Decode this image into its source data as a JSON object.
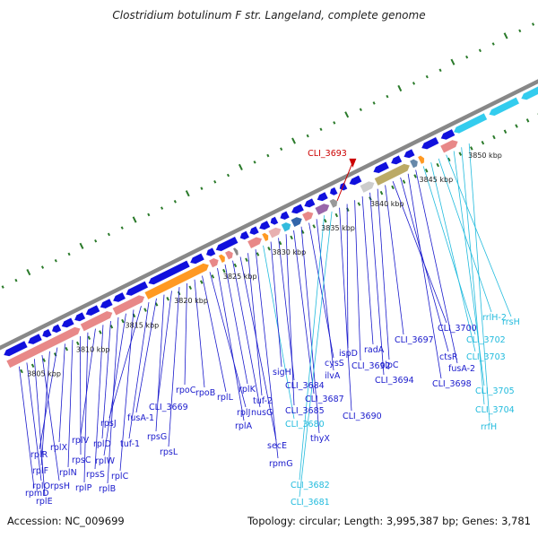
{
  "title": "Clostridium botulinum F str. Langeland, complete genome",
  "footer": {
    "accession": "Accession: NC_009699",
    "info": "Topology: circular; Length: 3,995,387 bp; Genes: 3,781"
  },
  "highlight": {
    "label": "CLI_3693",
    "color": "#cc0000"
  },
  "colors": {
    "backbone": "#888888",
    "gene_blue": "#1010dd",
    "gene_cyan": "#33ccee",
    "label_blue": "#1a1acc",
    "label_cyan": "#22bbdd",
    "tick_green": "#2a7a2a",
    "salmon": "#e88888",
    "orange": "#ff9922",
    "olive": "#bbaa66"
  },
  "scale_labels": [
    {
      "text": "3805 kbp",
      "kbp": 3805
    },
    {
      "text": "3810 kbp",
      "kbp": 3810
    },
    {
      "text": "3815 kbp",
      "kbp": 3815
    },
    {
      "text": "3820 kbp",
      "kbp": 3820
    },
    {
      "text": "3825 kbp",
      "kbp": 3825
    },
    {
      "text": "3830 kbp",
      "kbp": 3830
    },
    {
      "text": "3835 kbp",
      "kbp": 3835
    },
    {
      "text": "3840 kbp",
      "kbp": 3840
    },
    {
      "text": "3845 kbp",
      "kbp": 3845
    },
    {
      "text": "3850 kbp",
      "kbp": 3850
    }
  ],
  "gene_labels": [
    {
      "text": "rpmD",
      "color": "blue"
    },
    {
      "text": "rplO",
      "color": "blue"
    },
    {
      "text": "rplE",
      "color": "blue"
    },
    {
      "text": "rpsH",
      "color": "blue"
    },
    {
      "text": "rplF",
      "color": "blue"
    },
    {
      "text": "rplR",
      "color": "blue"
    },
    {
      "text": "rplX",
      "color": "blue"
    },
    {
      "text": "rplN",
      "color": "blue"
    },
    {
      "text": "rpsC",
      "color": "blue"
    },
    {
      "text": "rplP",
      "color": "blue"
    },
    {
      "text": "rplV",
      "color": "blue"
    },
    {
      "text": "rpsS",
      "color": "blue"
    },
    {
      "text": "rplD",
      "color": "blue"
    },
    {
      "text": "rplB",
      "color": "blue"
    },
    {
      "text": "rplW",
      "color": "blue"
    },
    {
      "text": "rplC",
      "color": "blue"
    },
    {
      "text": "rpsJ",
      "color": "blue"
    },
    {
      "text": "tuf-1",
      "color": "blue"
    },
    {
      "text": "fusA-1",
      "color": "blue"
    },
    {
      "text": "rpsG",
      "color": "blue"
    },
    {
      "text": "CLI_3669",
      "color": "blue"
    },
    {
      "text": "rpsL",
      "color": "blue"
    },
    {
      "text": "rpoC",
      "color": "blue"
    },
    {
      "text": "rpoB",
      "color": "blue"
    },
    {
      "text": "rplL",
      "color": "blue"
    },
    {
      "text": "rplJ",
      "color": "blue"
    },
    {
      "text": "rplA",
      "color": "blue"
    },
    {
      "text": "rplK",
      "color": "blue"
    },
    {
      "text": "nusG",
      "color": "blue"
    },
    {
      "text": "secE",
      "color": "blue"
    },
    {
      "text": "tuf-2",
      "color": "blue"
    },
    {
      "text": "rpmG",
      "color": "blue"
    },
    {
      "text": "CLI_3680",
      "color": "cyan"
    },
    {
      "text": "sigH",
      "color": "blue"
    },
    {
      "text": "CLI_3684",
      "color": "blue"
    },
    {
      "text": "CLI_3685",
      "color": "blue"
    },
    {
      "text": "CLI_3687",
      "color": "blue"
    },
    {
      "text": "thyX",
      "color": "blue"
    },
    {
      "text": "cysS",
      "color": "blue"
    },
    {
      "text": "ilvA",
      "color": "blue"
    },
    {
      "text": "CLI_3682",
      "color": "cyan"
    },
    {
      "text": "CLI_3681",
      "color": "cyan"
    },
    {
      "text": "CLI_3690",
      "color": "blue"
    },
    {
      "text": "ispD",
      "color": "blue"
    },
    {
      "text": "CLI_3692",
      "color": "blue"
    },
    {
      "text": "radA",
      "color": "blue"
    },
    {
      "text": "CLI_3694",
      "color": "blue"
    },
    {
      "text": "clpC",
      "color": "blue"
    },
    {
      "text": "CLI_3697",
      "color": "blue"
    },
    {
      "text": "CLI_3700",
      "color": "blue"
    },
    {
      "text": "ctsR",
      "color": "blue"
    },
    {
      "text": "CLI_3698",
      "color": "blue"
    },
    {
      "text": "fusA-2",
      "color": "blue"
    },
    {
      "text": "CLI_3702",
      "color": "cyan"
    },
    {
      "text": "CLI_3703",
      "color": "cyan"
    },
    {
      "text": "rrlH-2",
      "color": "cyan"
    },
    {
      "text": "rrsH",
      "color": "cyan"
    },
    {
      "text": "CLI_3705",
      "color": "cyan"
    },
    {
      "text": "CLI_3704",
      "color": "cyan"
    },
    {
      "text": "rrfH",
      "color": "cyan"
    }
  ]
}
